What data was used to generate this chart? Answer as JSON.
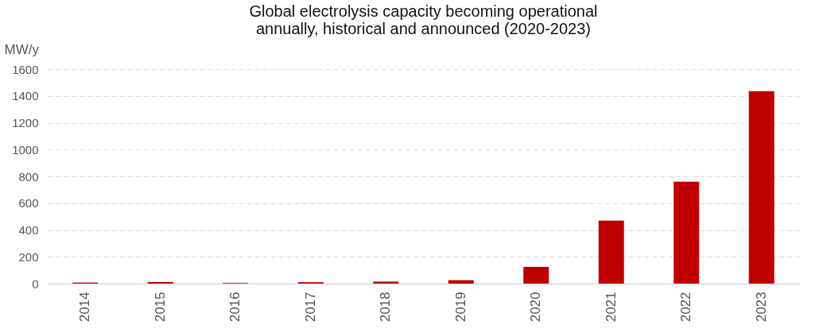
{
  "chart_data": {
    "type": "bar",
    "title": [
      "Global electrolysis capacity becoming operational",
      "annually, historical and announced (2020-2023)"
    ],
    "ylabel": "MW/y",
    "categories": [
      "2014",
      "2015",
      "2016",
      "2017",
      "2018",
      "2019",
      "2020",
      "2021",
      "2022",
      "2023"
    ],
    "values": [
      8,
      12,
      5,
      10,
      15,
      25,
      125,
      470,
      760,
      1435
    ],
    "color": "#c00000",
    "ylim": [
      0,
      1600
    ],
    "yticks": [
      0,
      200,
      400,
      600,
      800,
      1000,
      1200,
      1400,
      1600
    ],
    "grid": "y"
  }
}
